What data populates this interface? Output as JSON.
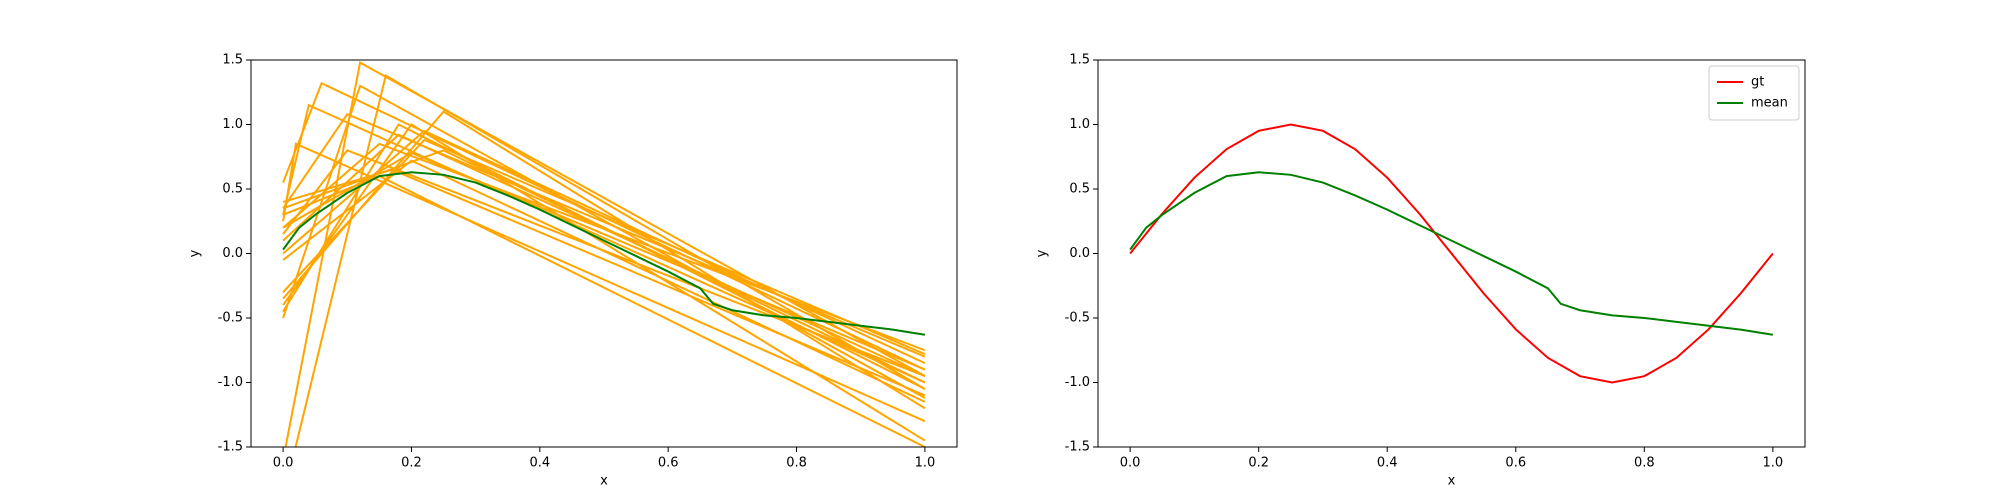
{
  "chart_data": [
    {
      "type": "line",
      "xlabel": "x",
      "ylabel": "y",
      "xlim": [
        -0.05,
        1.05
      ],
      "ylim": [
        -1.5,
        1.5
      ],
      "xticks": [
        {
          "value": 0,
          "label": "0.0"
        },
        0.2,
        0.4,
        0.6,
        0.8,
        {
          "value": 1,
          "label": "1.0"
        }
      ],
      "yticks": [
        -1.5,
        {
          "value": -1,
          "label": "-1.0"
        },
        -0.5,
        {
          "value": 0,
          "label": "0.0"
        },
        0.5,
        {
          "value": 1,
          "label": "1.0"
        },
        1.5
      ],
      "series": [
        {
          "color": "orange",
          "x": [
            0,
            0.12,
            1
          ],
          "values": [
            -1.6,
            1.48,
            -0.95
          ]
        },
        {
          "color": "orange",
          "x": [
            0,
            0.16,
            1
          ],
          "values": [
            -1.9,
            1.38,
            -1.05
          ]
        },
        {
          "color": "orange",
          "x": [
            0,
            0.06,
            1
          ],
          "values": [
            0.55,
            1.32,
            -0.9
          ]
        },
        {
          "color": "orange",
          "x": [
            0,
            0.1,
            1
          ],
          "values": [
            0.35,
            1.08,
            -0.8
          ]
        },
        {
          "color": "orange",
          "x": [
            0,
            0.12,
            1
          ],
          "values": [
            -0.5,
            1.3,
            -1.12
          ]
        },
        {
          "color": "orange",
          "x": [
            0,
            0.04,
            1
          ],
          "values": [
            0.3,
            1.15,
            -1.0
          ]
        },
        {
          "color": "orange",
          "x": [
            0,
            0.2,
            1
          ],
          "values": [
            -0.4,
            1.0,
            -1.45
          ]
        },
        {
          "color": "orange",
          "x": [
            0,
            0.22,
            1
          ],
          "values": [
            0.0,
            0.95,
            -0.85
          ]
        },
        {
          "color": "orange",
          "x": [
            0,
            0.15,
            1
          ],
          "values": [
            0.2,
            0.85,
            -0.75
          ]
        },
        {
          "color": "orange",
          "x": [
            0,
            0.25,
            1
          ],
          "values": [
            -0.35,
            1.1,
            -1.2
          ]
        },
        {
          "color": "orange",
          "x": [
            0,
            0.18,
            1
          ],
          "values": [
            0.1,
            0.92,
            -0.95
          ]
        },
        {
          "color": "orange",
          "x": [
            0,
            0.02,
            1
          ],
          "values": [
            0.25,
            0.85,
            -1.3
          ]
        },
        {
          "color": "orange",
          "x": [
            0,
            0.2,
            1
          ],
          "values": [
            -0.05,
            0.72,
            -1.15
          ]
        },
        {
          "color": "orange",
          "x": [
            0,
            0.15,
            1
          ],
          "values": [
            0.3,
            0.6,
            -1.5
          ]
        },
        {
          "color": "orange",
          "x": [
            0,
            0.17,
            1
          ],
          "values": [
            0.4,
            0.65,
            -1.1
          ]
        },
        {
          "color": "orange",
          "x": [
            0,
            0.1,
            1
          ],
          "values": [
            0.15,
            0.8,
            -0.95
          ]
        },
        {
          "color": "orange",
          "x": [
            0,
            0.22,
            1
          ],
          "values": [
            -0.3,
            0.88,
            -0.78
          ]
        },
        {
          "color": "orange",
          "x": [
            0,
            0.25,
            1
          ],
          "values": [
            0.35,
            0.8,
            -1.0
          ]
        },
        {
          "color": "orange",
          "x": [
            0,
            0.18,
            1
          ],
          "values": [
            -0.45,
            1.0,
            -1.05
          ]
        },
        {
          "color": "orange",
          "x": [
            0,
            0.2,
            1
          ],
          "values": [
            0.2,
            0.78,
            -0.9
          ]
        },
        {
          "color": "green",
          "x": [
            0,
            0.025,
            0.05,
            0.1,
            0.15,
            0.2,
            0.25,
            0.3,
            0.35,
            0.4,
            0.45,
            0.5,
            0.55,
            0.6,
            0.65,
            0.67,
            0.7,
            0.75,
            0.8,
            0.85,
            0.9,
            0.95,
            1
          ],
          "values": [
            0.03,
            0.2,
            0.3,
            0.47,
            0.6,
            0.63,
            0.61,
            0.55,
            0.45,
            0.34,
            0.22,
            0.1,
            -0.02,
            -0.14,
            -0.27,
            -0.39,
            -0.44,
            -0.48,
            -0.5,
            -0.53,
            -0.56,
            -0.59,
            -0.63
          ]
        }
      ]
    },
    {
      "type": "line",
      "xlabel": "x",
      "ylabel": "y",
      "xlim": [
        -0.05,
        1.05
      ],
      "ylim": [
        -1.5,
        1.5
      ],
      "xticks": [
        {
          "value": 0,
          "label": "0.0"
        },
        0.2,
        0.4,
        0.6,
        0.8,
        {
          "value": 1,
          "label": "1.0"
        }
      ],
      "yticks": [
        -1.5,
        {
          "value": -1,
          "label": "-1.0"
        },
        -0.5,
        {
          "value": 0,
          "label": "0.0"
        },
        0.5,
        {
          "value": 1,
          "label": "1.0"
        },
        1.5
      ],
      "legend": "upper right",
      "series": [
        {
          "name": "gt",
          "color": "red",
          "x": [
            0,
            0.05,
            0.1,
            0.15,
            0.2,
            0.25,
            0.3,
            0.35,
            0.4,
            0.45,
            0.5,
            0.55,
            0.6,
            0.65,
            0.7,
            0.75,
            0.8,
            0.85,
            0.9,
            0.95,
            1
          ],
          "values": [
            0,
            0.309,
            0.588,
            0.809,
            0.951,
            1,
            0.951,
            0.809,
            0.588,
            0.309,
            0,
            -0.309,
            -0.588,
            -0.809,
            -0.951,
            -1,
            -0.951,
            -0.809,
            -0.588,
            -0.309,
            0
          ]
        },
        {
          "name": "mean",
          "color": "green",
          "x": [
            0,
            0.025,
            0.05,
            0.1,
            0.15,
            0.2,
            0.25,
            0.3,
            0.35,
            0.4,
            0.45,
            0.5,
            0.55,
            0.6,
            0.65,
            0.67,
            0.7,
            0.75,
            0.8,
            0.85,
            0.9,
            0.95,
            1
          ],
          "values": [
            0.03,
            0.2,
            0.3,
            0.47,
            0.6,
            0.63,
            0.61,
            0.55,
            0.45,
            0.34,
            0.22,
            0.1,
            -0.02,
            -0.14,
            -0.27,
            -0.39,
            -0.44,
            -0.48,
            -0.5,
            -0.53,
            -0.56,
            -0.59,
            -0.63
          ]
        }
      ]
    }
  ]
}
